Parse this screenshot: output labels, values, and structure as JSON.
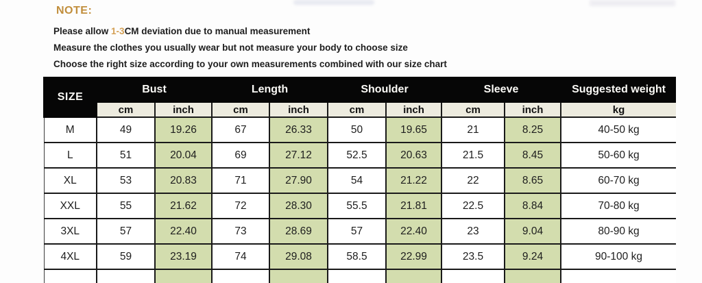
{
  "note": {
    "title": "NOTE:",
    "line1_prefix": "Please allow ",
    "line1_highlight": "1-3",
    "line1_suffix": "CM deviation due to manual measurement",
    "line2": "Measure the clothes you usually wear but not measure your body to choose size",
    "line3": "Choose the right size according to your own measurements combined with our size chart"
  },
  "table": {
    "size_header": "SIZE",
    "groups": [
      {
        "label": "Bust"
      },
      {
        "label": "Length"
      },
      {
        "label": "Shoulder"
      },
      {
        "label": "Sleeve"
      }
    ],
    "weight_header": "Suggested weight",
    "unit_cm": "cm",
    "unit_inch": "inch",
    "unit_kg": "kg",
    "rows": [
      {
        "size": "M",
        "bust_cm": "49",
        "bust_in": "19.26",
        "len_cm": "67",
        "len_in": "26.33",
        "sh_cm": "50",
        "sh_in": "19.65",
        "sl_cm": "21",
        "sl_in": "8.25",
        "weight": "40-50 kg"
      },
      {
        "size": "L",
        "bust_cm": "51",
        "bust_in": "20.04",
        "len_cm": "69",
        "len_in": "27.12",
        "sh_cm": "52.5",
        "sh_in": "20.63",
        "sl_cm": "21.5",
        "sl_in": "8.45",
        "weight": "50-60 kg"
      },
      {
        "size": "XL",
        "bust_cm": "53",
        "bust_in": "20.83",
        "len_cm": "71",
        "len_in": "27.90",
        "sh_cm": "54",
        "sh_in": "21.22",
        "sl_cm": "22",
        "sl_in": "8.65",
        "weight": "60-70 kg"
      },
      {
        "size": "XXL",
        "bust_cm": "55",
        "bust_in": "21.62",
        "len_cm": "72",
        "len_in": "28.30",
        "sh_cm": "55.5",
        "sh_in": "21.81",
        "sl_cm": "22.5",
        "sl_in": "8.84",
        "weight": "70-80 kg"
      },
      {
        "size": "3XL",
        "bust_cm": "57",
        "bust_in": "22.40",
        "len_cm": "73",
        "len_in": "28.69",
        "sh_cm": "57",
        "sh_in": "22.40",
        "sl_cm": "23",
        "sl_in": "9.04",
        "weight": "80-90 kg"
      },
      {
        "size": "4XL",
        "bust_cm": "59",
        "bust_in": "23.19",
        "len_cm": "74",
        "len_in": "29.08",
        "sh_cm": "58.5",
        "sh_in": "22.99",
        "sl_cm": "23.5",
        "sl_in": "9.24",
        "weight": "90-100 kg"
      }
    ]
  },
  "colors": {
    "note_orange": "#c18e3c",
    "highlight_orange": "#d4a055",
    "header_bg": "#060606",
    "header_text": "#fbfaf6",
    "units_bg": "#edebdf",
    "inch_bg": "#d3ddae",
    "border_dark": "#191919",
    "text_dark": "#1d1d1d"
  }
}
